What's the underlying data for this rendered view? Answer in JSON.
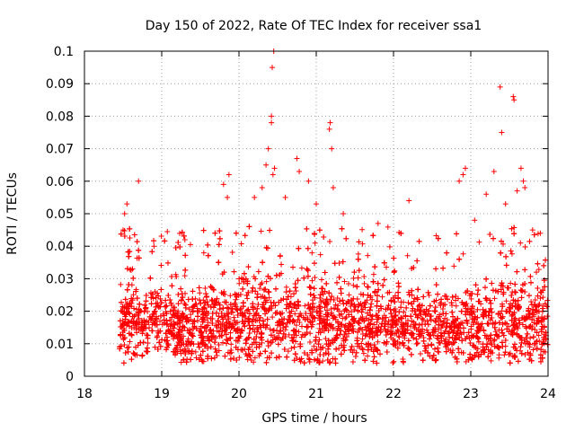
{
  "chart_data": {
    "type": "scatter",
    "title": "Day 150 of 2022, Rate Of TEC Index for receiver ssa1",
    "xlabel": "GPS time / hours",
    "ylabel": "ROTI / TECUs",
    "xlim": [
      18,
      24
    ],
    "ylim": [
      0,
      0.1
    ],
    "x_ticks": [
      "18",
      "19",
      "20",
      "21",
      "22",
      "23",
      "24"
    ],
    "y_ticks": [
      "0",
      "0.01",
      "0.02",
      "0.03",
      "0.04",
      "0.05",
      "0.06",
      "0.07",
      "0.08",
      "0.09",
      "0.1"
    ],
    "grid": true,
    "marker": "+",
    "color": "#ff0000",
    "x_start": 18.45,
    "x_end": 24.0,
    "points_per_hour": 900,
    "band": [
      {
        "x": 18.45,
        "median": 0.016,
        "spread": 0.011
      },
      {
        "x": 19.0,
        "median": 0.016,
        "spread": 0.012
      },
      {
        "x": 19.5,
        "median": 0.015,
        "spread": 0.013
      },
      {
        "x": 20.0,
        "median": 0.016,
        "spread": 0.014
      },
      {
        "x": 20.5,
        "median": 0.017,
        "spread": 0.016
      },
      {
        "x": 21.0,
        "median": 0.016,
        "spread": 0.015
      },
      {
        "x": 21.5,
        "median": 0.017,
        "spread": 0.015
      },
      {
        "x": 22.0,
        "median": 0.016,
        "spread": 0.013
      },
      {
        "x": 22.5,
        "median": 0.015,
        "spread": 0.012
      },
      {
        "x": 23.0,
        "median": 0.015,
        "spread": 0.013
      },
      {
        "x": 23.5,
        "median": 0.016,
        "spread": 0.014
      },
      {
        "x": 24.0,
        "median": 0.016,
        "spread": 0.013
      }
    ],
    "outliers": [
      {
        "x": 18.5,
        "y": 0.045
      },
      {
        "x": 18.55,
        "y": 0.053
      },
      {
        "x": 18.52,
        "y": 0.05
      },
      {
        "x": 18.7,
        "y": 0.06
      },
      {
        "x": 18.9,
        "y": 0.04
      },
      {
        "x": 19.3,
        "y": 0.042
      },
      {
        "x": 19.8,
        "y": 0.059
      },
      {
        "x": 19.87,
        "y": 0.062
      },
      {
        "x": 19.85,
        "y": 0.055
      },
      {
        "x": 20.2,
        "y": 0.055
      },
      {
        "x": 20.3,
        "y": 0.058
      },
      {
        "x": 20.35,
        "y": 0.065
      },
      {
        "x": 20.38,
        "y": 0.07
      },
      {
        "x": 20.42,
        "y": 0.078
      },
      {
        "x": 20.42,
        "y": 0.08
      },
      {
        "x": 20.43,
        "y": 0.095
      },
      {
        "x": 20.45,
        "y": 0.1
      },
      {
        "x": 20.44,
        "y": 0.062
      },
      {
        "x": 20.46,
        "y": 0.064
      },
      {
        "x": 20.6,
        "y": 0.055
      },
      {
        "x": 20.75,
        "y": 0.067
      },
      {
        "x": 20.78,
        "y": 0.063
      },
      {
        "x": 20.9,
        "y": 0.06
      },
      {
        "x": 21.0,
        "y": 0.053
      },
      {
        "x": 21.17,
        "y": 0.076
      },
      {
        "x": 21.18,
        "y": 0.078
      },
      {
        "x": 21.2,
        "y": 0.07
      },
      {
        "x": 21.22,
        "y": 0.058
      },
      {
        "x": 21.35,
        "y": 0.05
      },
      {
        "x": 21.8,
        "y": 0.047
      },
      {
        "x": 22.2,
        "y": 0.054
      },
      {
        "x": 22.85,
        "y": 0.06
      },
      {
        "x": 22.9,
        "y": 0.062
      },
      {
        "x": 22.93,
        "y": 0.064
      },
      {
        "x": 23.05,
        "y": 0.048
      },
      {
        "x": 23.2,
        "y": 0.056
      },
      {
        "x": 23.3,
        "y": 0.063
      },
      {
        "x": 23.38,
        "y": 0.089
      },
      {
        "x": 23.4,
        "y": 0.075
      },
      {
        "x": 23.55,
        "y": 0.086
      },
      {
        "x": 23.56,
        "y": 0.085
      },
      {
        "x": 23.65,
        "y": 0.064
      },
      {
        "x": 23.68,
        "y": 0.06
      },
      {
        "x": 23.7,
        "y": 0.058
      },
      {
        "x": 23.6,
        "y": 0.057
      },
      {
        "x": 23.45,
        "y": 0.053
      },
      {
        "x": 23.8,
        "y": 0.045
      },
      {
        "x": 23.9,
        "y": 0.044
      }
    ]
  }
}
